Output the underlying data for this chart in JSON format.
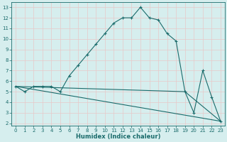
{
  "xlabel": "Humidex (Indice chaleur)",
  "xlim": [
    -0.5,
    23.5
  ],
  "ylim": [
    1.8,
    13.5
  ],
  "yticks": [
    2,
    3,
    4,
    5,
    6,
    7,
    8,
    9,
    10,
    11,
    12,
    13
  ],
  "xticks": [
    0,
    1,
    2,
    3,
    4,
    5,
    6,
    7,
    8,
    9,
    10,
    11,
    12,
    13,
    14,
    15,
    16,
    17,
    18,
    19,
    20,
    21,
    22,
    23
  ],
  "background_color": "#d6eeee",
  "line_color": "#1a6b6b",
  "curve1_x": [
    0,
    1,
    2,
    3,
    4,
    5,
    6,
    7,
    8,
    9,
    10,
    11,
    12,
    13,
    14,
    15,
    16,
    17,
    18,
    19,
    20,
    21,
    22,
    23
  ],
  "curve1_y": [
    5.5,
    5.0,
    5.5,
    5.5,
    5.5,
    5.0,
    6.5,
    7.5,
    8.5,
    9.5,
    10.5,
    11.5,
    12.0,
    12.0,
    13.0,
    12.0,
    11.8,
    10.5,
    9.8,
    5.0,
    3.0,
    7.0,
    4.5,
    2.2
  ],
  "curve2_x": [
    0,
    23
  ],
  "curve2_y": [
    5.5,
    2.2
  ],
  "curve3_x": [
    0,
    19,
    23
  ],
  "curve3_y": [
    5.5,
    5.0,
    2.2
  ],
  "grid_color": "#b8d8d8"
}
